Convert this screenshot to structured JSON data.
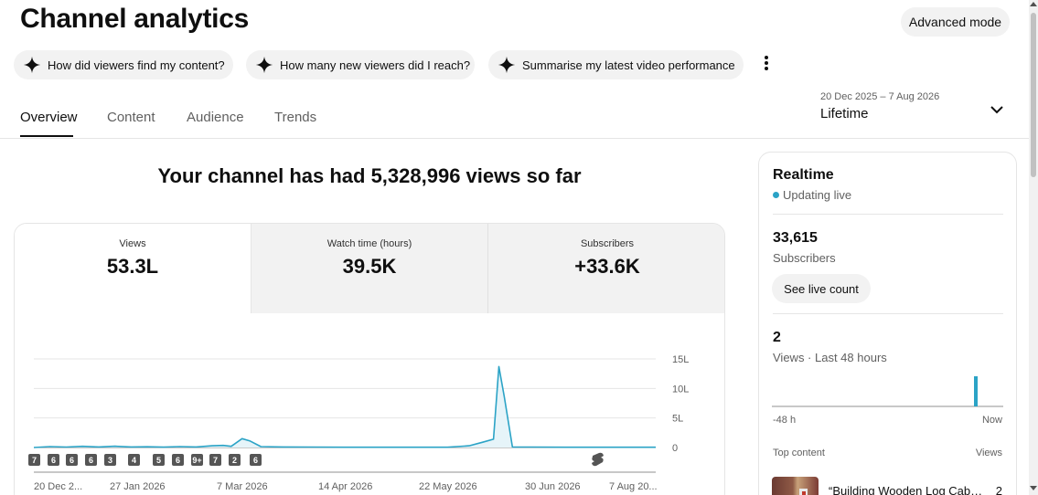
{
  "header": {
    "title": "Channel analytics",
    "advanced_mode_label": "Advanced mode"
  },
  "suggestions": [
    {
      "label": "How did viewers find my content?",
      "icon": "sparkle-icon"
    },
    {
      "label": "How many new viewers did I reach?",
      "icon": "sparkle-icon"
    },
    {
      "label": "Summarise my latest video performance",
      "icon": "sparkle-icon"
    }
  ],
  "tabs": [
    {
      "label": "Overview",
      "active": true
    },
    {
      "label": "Content",
      "active": false
    },
    {
      "label": "Audience",
      "active": false
    },
    {
      "label": "Trends",
      "active": false
    }
  ],
  "period": {
    "range": "20 Dec 2025 – 7 Aug 2026",
    "label": "Lifetime"
  },
  "headline": "Your channel has had 5,328,996 views so far",
  "metrics": [
    {
      "label": "Views",
      "value": "53.3L",
      "selected": true
    },
    {
      "label": "Watch time (hours)",
      "value": "39.5K",
      "selected": false
    },
    {
      "label": "Subscribers",
      "value": "+33.6K",
      "selected": false
    }
  ],
  "chart_data": {
    "type": "area",
    "x_labels": [
      "20 Dec 2...",
      "27 Jan 2026",
      "7 Mar 2026",
      "14 Apr 2026",
      "22 May 2026",
      "30 Jun 2026",
      "7 Aug 20..."
    ],
    "y_ticks": [
      "15L",
      "10L",
      "5L",
      "0"
    ],
    "ylim": [
      0,
      1500000
    ],
    "x_start": "2025-12-20",
    "x_end": "2026-08-07",
    "series": [
      {
        "color": "#2ba3c6",
        "points": [
          [
            "2025-12-20",
            0
          ],
          [
            "2025-12-26",
            15000
          ],
          [
            "2026-01-01",
            8000
          ],
          [
            "2026-01-07",
            20000
          ],
          [
            "2026-01-13",
            10000
          ],
          [
            "2026-01-19",
            22000
          ],
          [
            "2026-01-25",
            9000
          ],
          [
            "2026-01-31",
            12000
          ],
          [
            "2026-02-06",
            6000
          ],
          [
            "2026-02-12",
            15000
          ],
          [
            "2026-02-18",
            10000
          ],
          [
            "2026-02-24",
            30000
          ],
          [
            "2026-02-28",
            35000
          ],
          [
            "2026-03-03",
            20000
          ],
          [
            "2026-03-07",
            150000
          ],
          [
            "2026-03-10",
            110000
          ],
          [
            "2026-03-14",
            15000
          ],
          [
            "2026-03-22",
            10000
          ],
          [
            "2026-04-01",
            8000
          ],
          [
            "2026-04-14",
            5000
          ],
          [
            "2026-04-28",
            5000
          ],
          [
            "2026-05-10",
            5000
          ],
          [
            "2026-05-22",
            5000
          ],
          [
            "2026-05-30",
            30000
          ],
          [
            "2026-06-04",
            90000
          ],
          [
            "2026-06-08",
            140000
          ],
          [
            "2026-06-10",
            1370000
          ],
          [
            "2026-06-12",
            860000
          ],
          [
            "2026-06-15",
            10000
          ],
          [
            "2026-06-22",
            8000
          ],
          [
            "2026-07-05",
            5000
          ],
          [
            "2026-07-20",
            5000
          ],
          [
            "2026-08-07",
            5000
          ]
        ]
      }
    ],
    "video_markers": [
      "7",
      "6",
      "6",
      "6",
      "3",
      "4",
      "5",
      "6",
      "9+",
      "7",
      "2",
      "6"
    ],
    "shorts_marker_icon": "shorts-icon"
  },
  "realtime": {
    "title": "Realtime",
    "status": "Updating live",
    "subscribers_value": "33,615",
    "subscribers_label": "Subscribers",
    "live_count_button": "See live count",
    "views_value": "2",
    "views_label": "Views · Last 48 hours",
    "axis_left": "-48 h",
    "axis_right": "Now",
    "top_content_label": "Top content",
    "views_column_label": "Views",
    "top_video_title": "“Building Wooden Log Cabin in the Woods",
    "top_video_views": "2"
  }
}
